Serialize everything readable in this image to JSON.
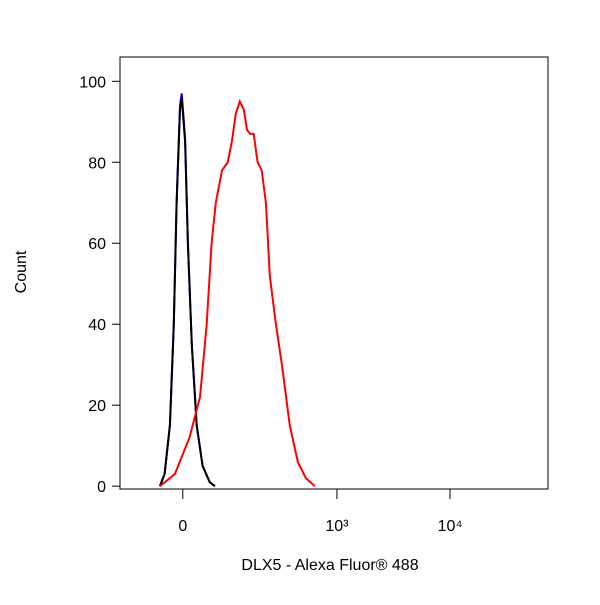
{
  "chart_data": {
    "type": "line",
    "x_label": "DLX5 - Alexa Fluor® 488",
    "y_label": "Count",
    "xscale": "biexponential",
    "xlim": [
      -144,
      73500
    ],
    "ylim": [
      -0.7,
      106
    ],
    "xticks": [
      {
        "value": 0,
        "label": "0"
      },
      {
        "value": 1000,
        "label": "10³"
      },
      {
        "value": 10000,
        "label": "10⁴"
      }
    ],
    "yticks": [
      0,
      20,
      40,
      60,
      80,
      100
    ],
    "series": [
      {
        "color": "#0000ff",
        "x": [
          -42,
          -33,
          -23,
          -16,
          -11,
          -5,
          -2,
          4,
          9,
          16,
          25,
          36,
          50,
          61
        ],
        "values": [
          0,
          3,
          15,
          40,
          70,
          94,
          97,
          86,
          60,
          35,
          15,
          5,
          1,
          0
        ]
      },
      {
        "color": "#000000",
        "x": [
          -42,
          -33,
          -23,
          -16,
          -11,
          -5,
          -2,
          4,
          9,
          16,
          25,
          36,
          50,
          61
        ],
        "values": [
          0,
          3,
          15,
          40,
          70,
          93,
          96,
          85,
          60,
          35,
          15,
          5,
          1,
          0
        ]
      },
      {
        "color": "#ff0000",
        "x": [
          -42,
          -14,
          12,
          31,
          44,
          54,
          63,
          77,
          91,
          102,
          113,
          125,
          138,
          149,
          160,
          174,
          190,
          208,
          228,
          248,
          283,
          321,
          379,
          448,
          529,
          637
        ],
        "values": [
          0,
          3,
          12,
          22,
          40,
          60,
          70,
          78,
          80,
          85,
          92,
          95,
          93,
          88,
          87,
          87,
          80,
          78,
          70,
          52,
          40,
          30,
          15,
          6,
          2,
          0
        ]
      }
    ]
  }
}
